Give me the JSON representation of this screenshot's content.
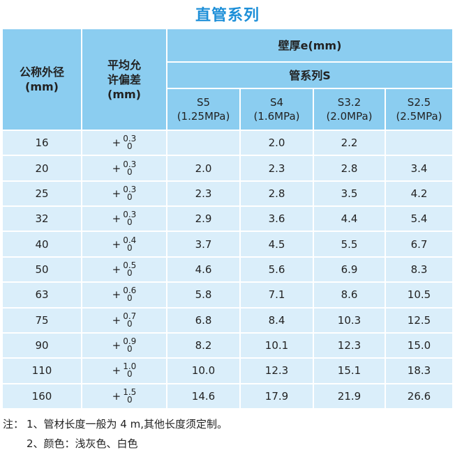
{
  "title": "直管系列",
  "table": {
    "header": {
      "nominal_diameter": [
        "公称外径",
        "(mm)"
      ],
      "tolerance": [
        "平均允",
        "许偏差",
        "(mm)"
      ],
      "wall_thickness": "壁厚e(mm)",
      "pipe_series": "管系列S",
      "series": [
        {
          "name": "S5",
          "pressure": "(1.25MPa)"
        },
        {
          "name": "S4",
          "pressure": "(1.6MPa)"
        },
        {
          "name": "S3.2",
          "pressure": "(2.0MPa)"
        },
        {
          "name": "S2.5",
          "pressure": "(2.5MPa)"
        }
      ]
    },
    "rows": [
      {
        "diameter": "16",
        "tolerance": {
          "sign": "+",
          "upper": "0.3",
          "lower": "0"
        },
        "thickness": [
          null,
          "2.0",
          "2.2",
          null
        ]
      },
      {
        "diameter": "20",
        "tolerance": {
          "sign": "+",
          "upper": "0.3",
          "lower": "0"
        },
        "thickness": [
          "2.0",
          "2.3",
          "2.8",
          "3.4"
        ]
      },
      {
        "diameter": "25",
        "tolerance": {
          "sign": "+",
          "upper": "0.3",
          "lower": "0"
        },
        "thickness": [
          "2.3",
          "2.8",
          "3.5",
          "4.2"
        ]
      },
      {
        "diameter": "32",
        "tolerance": {
          "sign": "+",
          "upper": "0.3",
          "lower": "0"
        },
        "thickness": [
          "2.9",
          "3.6",
          "4.4",
          "5.4"
        ]
      },
      {
        "diameter": "40",
        "tolerance": {
          "sign": "+",
          "upper": "0.4",
          "lower": "0"
        },
        "thickness": [
          "3.7",
          "4.5",
          "5.5",
          "6.7"
        ]
      },
      {
        "diameter": "50",
        "tolerance": {
          "sign": "+",
          "upper": "0.5",
          "lower": "0"
        },
        "thickness": [
          "4.6",
          "5.6",
          "6.9",
          "8.3"
        ]
      },
      {
        "diameter": "63",
        "tolerance": {
          "sign": "+",
          "upper": "0.6",
          "lower": "0"
        },
        "thickness": [
          "5.8",
          "7.1",
          "8.6",
          "10.5"
        ]
      },
      {
        "diameter": "75",
        "tolerance": {
          "sign": "+",
          "upper": "0.7",
          "lower": "0"
        },
        "thickness": [
          "6.8",
          "8.4",
          "10.3",
          "12.5"
        ]
      },
      {
        "diameter": "90",
        "tolerance": {
          "sign": "+",
          "upper": "0.9",
          "lower": "0"
        },
        "thickness": [
          "8.2",
          "10.1",
          "12.3",
          "15.0"
        ]
      },
      {
        "diameter": "110",
        "tolerance": {
          "sign": "+",
          "upper": "1.0",
          "lower": "0"
        },
        "thickness": [
          "10.0",
          "12.3",
          "15.1",
          "18.3"
        ]
      },
      {
        "diameter": "160",
        "tolerance": {
          "sign": "+",
          "upper": "1.5",
          "lower": "0"
        },
        "thickness": [
          "14.6",
          "17.9",
          "21.9",
          "26.6"
        ]
      }
    ]
  },
  "notes": {
    "label": "注：",
    "items": [
      "1、管材长度一般为 4 m,其他长度须定制。",
      "2、颜色：浅灰色、白色"
    ]
  }
}
